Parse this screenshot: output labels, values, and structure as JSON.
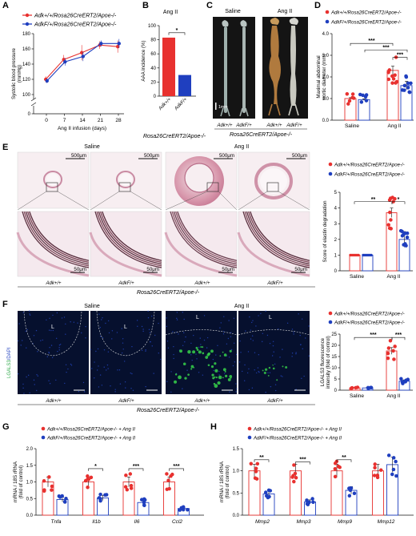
{
  "colors": {
    "wt": "#e8312f",
    "ko": "#1f3fbf",
    "hist_bg": "#f6e8ee",
    "fluor_bg": "#06102e"
  },
  "panels": {
    "A": {
      "letter": "A"
    },
    "B": {
      "letter": "B",
      "title": "Ang II"
    },
    "C": {
      "letter": "C"
    },
    "D": {
      "letter": "D"
    },
    "E": {
      "letter": "E"
    },
    "F": {
      "letter": "F"
    },
    "G": {
      "letter": "G"
    },
    "H": {
      "letter": "H"
    }
  },
  "legend": {
    "wt": "Adk+/+/Rosa26CreERT2/Apoe-/-",
    "ko": "AdkF/+/Rosa26CreERT2/Apoe-/-",
    "wt_ang": "Adk+/+/Rosa26CreERT2/Apoe-/- + Ang II",
    "ko_ang": "AdkF/+/Rosa26CreERT2/Apoe-/- + Ang II"
  },
  "genotype_footer": "Rosa26CreERT2/Apoe-/-",
  "genotypes": {
    "wt": "Adk+/+",
    "ko": "AdkF/+"
  },
  "groups": {
    "saline": "Saline",
    "ang": "Ang II"
  },
  "scale": {
    "s500": "500μm",
    "s50": "50μm",
    "s1mm": "1mm"
  },
  "lumen": "L",
  "stain_label_1": "LGALS3",
  "stain_label_2": "/DAPI",
  "chart_data": [
    {
      "panel": "A",
      "type": "line",
      "xlabel": "Ang II infusion (days)",
      "ylabel": "Systolic blood pressure (mmHg)",
      "x": [
        0,
        7,
        14,
        21,
        28
      ],
      "xticks": [
        "0",
        "7",
        "14",
        "21",
        "28"
      ],
      "yticks": [
        "0",
        "100",
        "120",
        "140",
        "160",
        "180"
      ],
      "series": [
        {
          "name": "Adk+/+/Rosa26CreERT2/Apoe-/-",
          "values": [
            120,
            146,
            155,
            165,
            163
          ],
          "err": [
            4,
            6,
            10,
            5,
            8
          ]
        },
        {
          "name": "AdkF/+/Rosa26CreERT2/Apoe-/-",
          "values": [
            118,
            143,
            150,
            167,
            167
          ],
          "err": [
            3,
            5,
            6,
            4,
            6
          ]
        }
      ]
    },
    {
      "panel": "B",
      "type": "bar",
      "title": "Ang II",
      "ylabel": "AAA incidence (%)",
      "yticks": [
        "0",
        "20",
        "40",
        "60",
        "80",
        "100"
      ],
      "ylim": [
        0,
        100
      ],
      "categories": [
        "Adk+/+",
        "AdkF/+"
      ],
      "values": [
        83,
        30
      ],
      "sig": "*"
    },
    {
      "panel": "D",
      "type": "bar",
      "ylabel": "Maximal abdominal aortic diameter (mm)",
      "yticks": [
        "0.0",
        "1.0",
        "2.0",
        "3.0",
        "4.0"
      ],
      "ylim": [
        0,
        4
      ],
      "categories": [
        "Saline",
        "Ang II"
      ],
      "series": [
        {
          "name": "Adk+/+",
          "values": [
            1.0,
            2.3
          ]
        },
        {
          "name": "AdkF/+",
          "values": [
            0.95,
            1.6
          ]
        }
      ],
      "sig": [
        "***",
        "***",
        "***"
      ]
    },
    {
      "panel": "E",
      "type": "bar",
      "ylabel": "Score of elastin degradation",
      "yticks": [
        "0",
        "1",
        "2",
        "3",
        "4",
        "5"
      ],
      "ylim": [
        0,
        5
      ],
      "categories": [
        "Saline",
        "Ang II"
      ],
      "series": [
        {
          "name": "Adk+/+",
          "values": [
            1.0,
            3.7
          ]
        },
        {
          "name": "AdkF/+",
          "values": [
            1.0,
            2.0
          ]
        }
      ],
      "sig": [
        "**",
        "*"
      ]
    },
    {
      "panel": "F",
      "type": "bar",
      "ylabel": "LGALS3 fluorescence intensity (fold of control)",
      "yticks": [
        "0",
        "5",
        "10",
        "15",
        "20",
        "25"
      ],
      "ylim": [
        0,
        25
      ],
      "categories": [
        "Saline",
        "Ang II"
      ],
      "series": [
        {
          "name": "Adk+/+",
          "values": [
            1.0,
            17.5
          ]
        },
        {
          "name": "AdkF/+",
          "values": [
            1.0,
            4.0
          ]
        }
      ],
      "sig": [
        "***",
        "***"
      ]
    },
    {
      "panel": "G",
      "type": "bar",
      "ylabel": "mRNA / 18S rRNA (fold of control)",
      "yticks": [
        "0.0",
        "0.5",
        "1.0",
        "1.5",
        "2.0"
      ],
      "ylim": [
        0,
        2
      ],
      "categories": [
        "Tnfa",
        "Il1b",
        "Il6",
        "Ccl2"
      ],
      "series": [
        {
          "name": "Adk+/+ + Ang II",
          "values": [
            1.0,
            1.0,
            1.0,
            1.0
          ]
        },
        {
          "name": "AdkF/+ + Ang II",
          "values": [
            0.47,
            0.52,
            0.38,
            0.2
          ]
        }
      ],
      "sig": [
        "",
        "*",
        "***",
        "***"
      ]
    },
    {
      "panel": "H",
      "type": "bar",
      "ylabel": "mRNA / 18S rRNA (fold of control)",
      "yticks": [
        "0.0",
        "0.5",
        "1.0",
        "1.5"
      ],
      "ylim": [
        0,
        1.5
      ],
      "categories": [
        "Mmp2",
        "Mmp3",
        "Mmp9",
        "Mmp12"
      ],
      "series": [
        {
          "name": "Adk+/+ + Ang II",
          "values": [
            1.0,
            1.0,
            1.0,
            1.0
          ]
        },
        {
          "name": "AdkF/+ + Ang II",
          "values": [
            0.48,
            0.3,
            0.56,
            1.14
          ]
        }
      ],
      "sig": [
        "**",
        "***",
        "**",
        ""
      ]
    }
  ]
}
